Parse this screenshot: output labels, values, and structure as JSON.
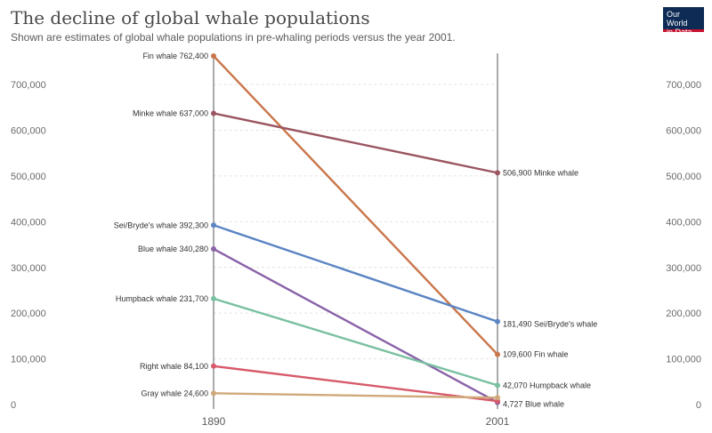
{
  "header": {
    "title": "The decline of global whale populations",
    "subtitle": "Shown are estimates of global whale populations in pre-whaling periods versus the year 2001.",
    "logo_line1": "Our World",
    "logo_line2": "in Data"
  },
  "chart_data": {
    "type": "line",
    "x": [
      "1890",
      "2001"
    ],
    "ylim": [
      0,
      762400
    ],
    "yticks": [
      0,
      100000,
      200000,
      300000,
      400000,
      500000,
      600000,
      700000
    ],
    "ytick_labels": [
      "0",
      "100,000",
      "200,000",
      "300,000",
      "400,000",
      "500,000",
      "600,000",
      "700,000"
    ],
    "grid": true,
    "series": [
      {
        "name": "Fin whale",
        "color": "#c9764a",
        "values": [
          762400,
          109600
        ],
        "label_start": "Fin whale 762,400",
        "label_end": "109,600 Fin whale"
      },
      {
        "name": "Minke whale",
        "color": "#9a5560",
        "values": [
          637000,
          506900
        ],
        "label_start": "Minke whale 637,000",
        "label_end": "506,900 Minke whale"
      },
      {
        "name": "Sei/Bryde's whale",
        "color": "#5b85c3",
        "values": [
          392300,
          181490
        ],
        "label_start": "Sei/Bryde's whale 392,300",
        "label_end": "181,490 Sei/Bryde's whale"
      },
      {
        "name": "Blue whale",
        "color": "#8a62a8",
        "values": [
          340280,
          4727
        ],
        "label_start": "Blue whale 340,280",
        "label_end": "4,727 Blue whale"
      },
      {
        "name": "Humpback whale",
        "color": "#78c0a0",
        "values": [
          231700,
          42070
        ],
        "label_start": "Humpback whale 231,700",
        "label_end": "42,070 Humpback whale"
      },
      {
        "name": "Right whale",
        "color": "#d75a6a",
        "values": [
          84100,
          7500
        ],
        "label_start": "Right whale 84,100",
        "label_end": ""
      },
      {
        "name": "Gray whale",
        "color": "#d0a87a",
        "values": [
          24600,
          15000
        ],
        "label_start": "Gray whale 24,600",
        "label_end": ""
      }
    ]
  }
}
